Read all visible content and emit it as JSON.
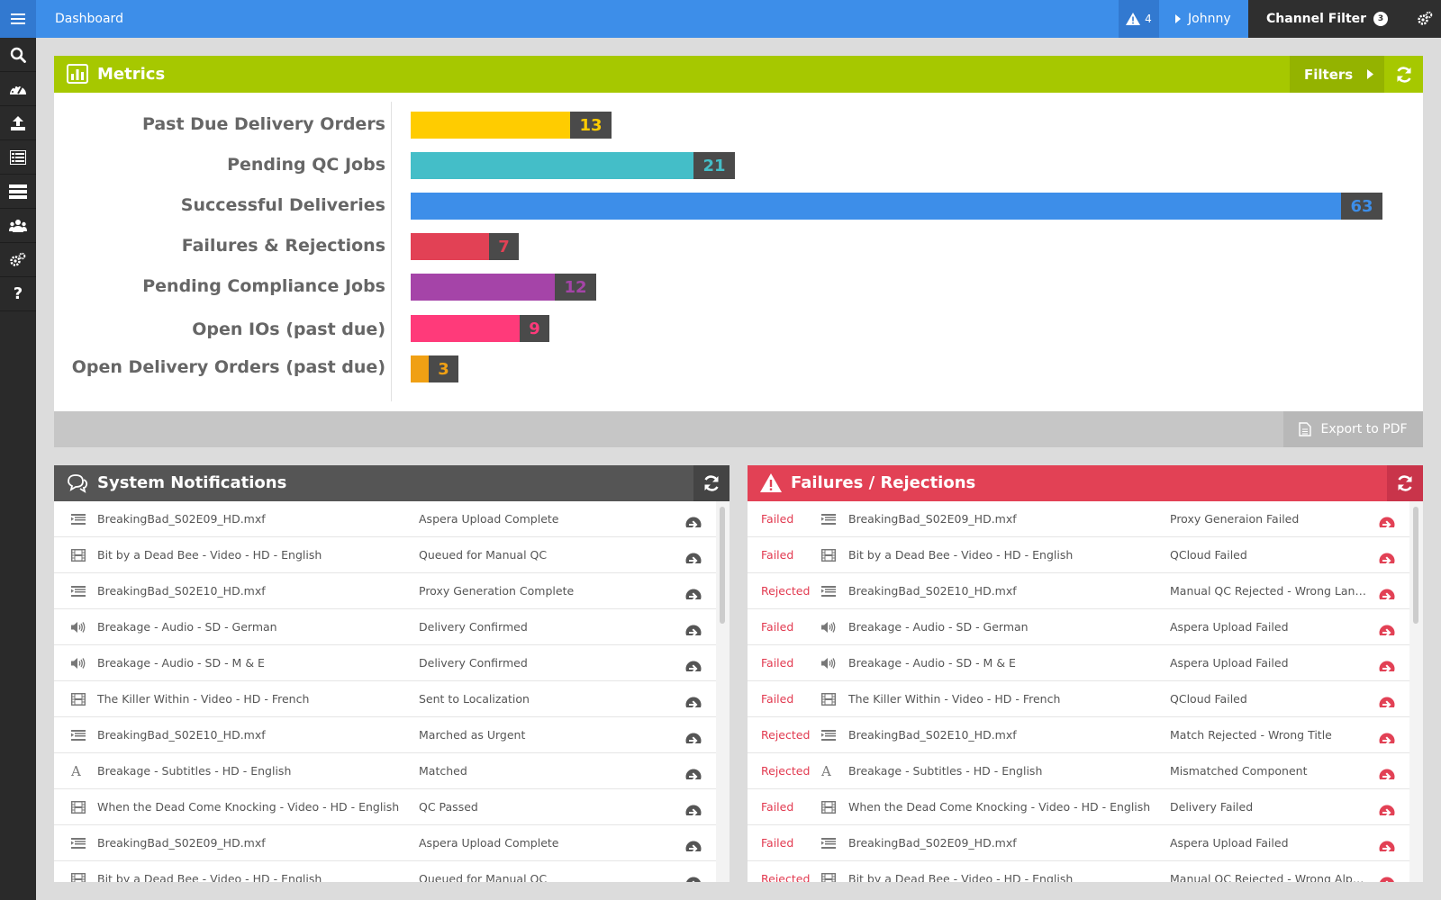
{
  "header": {
    "breadcrumb": "Dashboard",
    "alert_count": "4",
    "user": "Johnny",
    "channel_filter_label": "Channel Filter",
    "channel_filter_count": "3"
  },
  "sidebar": {
    "items": [
      {
        "icon": "search-icon"
      },
      {
        "icon": "dashboard-icon"
      },
      {
        "icon": "upload-icon"
      },
      {
        "icon": "list-icon"
      },
      {
        "icon": "server-icon"
      },
      {
        "icon": "users-icon"
      },
      {
        "icon": "settings-icon"
      },
      {
        "icon": "help-icon"
      }
    ]
  },
  "metrics": {
    "title": "Metrics",
    "filters_label": "Filters",
    "export_label": "Export to PDF",
    "items": [
      {
        "label": "Past Due Delivery Orders",
        "value": 13,
        "color": "#ffcc00"
      },
      {
        "label": "Pending QC Jobs",
        "value": 21,
        "color": "#44bec8"
      },
      {
        "label": "Successful Deliveries",
        "value": 63,
        "color": "#3d8ee9"
      },
      {
        "label": "Failures & Rejections",
        "value": 7,
        "color": "#e24155"
      },
      {
        "label": "Pending Compliance Jobs",
        "value": 12,
        "color": "#a544a8"
      },
      {
        "label": "Open IOs (past due)",
        "value": 9,
        "color": "#ff3a7a"
      },
      {
        "label": "Open Delivery Orders (past due)",
        "value": 3,
        "color": "#f0a014"
      }
    ]
  },
  "notifications": {
    "title": "System Notifications",
    "rows": [
      {
        "icon": "file-list-icon",
        "name": "BreakingBad_S02E09_HD.mxf",
        "message": "Aspera Upload Complete"
      },
      {
        "icon": "film-icon",
        "name": "Bit by a Dead Bee - Video - HD - English",
        "message": "Queued for Manual QC"
      },
      {
        "icon": "file-list-icon",
        "name": "BreakingBad_S02E10_HD.mxf",
        "message": "Proxy Generation Complete"
      },
      {
        "icon": "audio-icon",
        "name": "Breakage - Audio - SD - German",
        "message": "Delivery Confirmed"
      },
      {
        "icon": "audio-icon",
        "name": "Breakage - Audio - SD - M & E",
        "message": "Delivery Confirmed"
      },
      {
        "icon": "film-icon",
        "name": "The Killer Within - Video - HD - French",
        "message": "Sent to Localization"
      },
      {
        "icon": "file-list-icon",
        "name": "BreakingBad_S02E10_HD.mxf",
        "message": "Marched as Urgent"
      },
      {
        "icon": "subtitles-icon",
        "name": "Breakage - Subtitles - HD - English",
        "message": "Matched"
      },
      {
        "icon": "film-icon",
        "name": "When the Dead Come Knocking - Video - HD - English",
        "message": "QC Passed"
      },
      {
        "icon": "file-list-icon",
        "name": "BreakingBad_S02E09_HD.mxf",
        "message": "Aspera Upload Complete"
      },
      {
        "icon": "film-icon",
        "name": "Bit by a Dead Bee - Video - HD - English",
        "message": "Queued for Manual QC"
      }
    ]
  },
  "failures": {
    "title": "Failures / Rejections",
    "rows": [
      {
        "status": "Failed",
        "icon": "file-list-icon",
        "name": "BreakingBad_S02E09_HD.mxf",
        "message": "Proxy Generaion Failed"
      },
      {
        "status": "Failed",
        "icon": "film-icon",
        "name": "Bit by a Dead Bee - Video - HD - English",
        "message": "QCloud Failed"
      },
      {
        "status": "Rejected",
        "icon": "file-list-icon",
        "name": "BreakingBad_S02E10_HD.mxf",
        "message": "Manual QC Rejected - Wrong Langu..."
      },
      {
        "status": "Failed",
        "icon": "audio-icon",
        "name": "Breakage - Audio - SD - German",
        "message": "Aspera Upload Failed"
      },
      {
        "status": "Failed",
        "icon": "audio-icon",
        "name": "Breakage - Audio - SD - M & E",
        "message": "Aspera Upload Failed"
      },
      {
        "status": "Failed",
        "icon": "film-icon",
        "name": "The Killer Within - Video - HD - French",
        "message": "QCloud Failed"
      },
      {
        "status": "Rejected",
        "icon": "file-list-icon",
        "name": "BreakingBad_S02E10_HD.mxf",
        "message": "Match Rejected - Wrong Title"
      },
      {
        "status": "Rejected",
        "icon": "subtitles-icon",
        "name": "Breakage - Subtitles - HD - English",
        "message": "Mismatched Component"
      },
      {
        "status": "Failed",
        "icon": "film-icon",
        "name": "When the Dead Come Knocking - Video - HD - English",
        "message": "Delivery Failed"
      },
      {
        "status": "Failed",
        "icon": "file-list-icon",
        "name": "BreakingBad_S02E09_HD.mxf",
        "message": "Aspera Upload Failed"
      },
      {
        "status": "Rejected",
        "icon": "film-icon",
        "name": "Bit by a Dead Bee - Video - HD - English",
        "message": "Manual QC Rejected - Wrong Alpha..."
      }
    ]
  },
  "colors": {
    "header_blue": "#3d8ee9",
    "metrics_green": "#a6c800",
    "notifications_gray": "#555555",
    "failures_red": "#e24155",
    "sidebar_dark": "#2a2a2a"
  }
}
